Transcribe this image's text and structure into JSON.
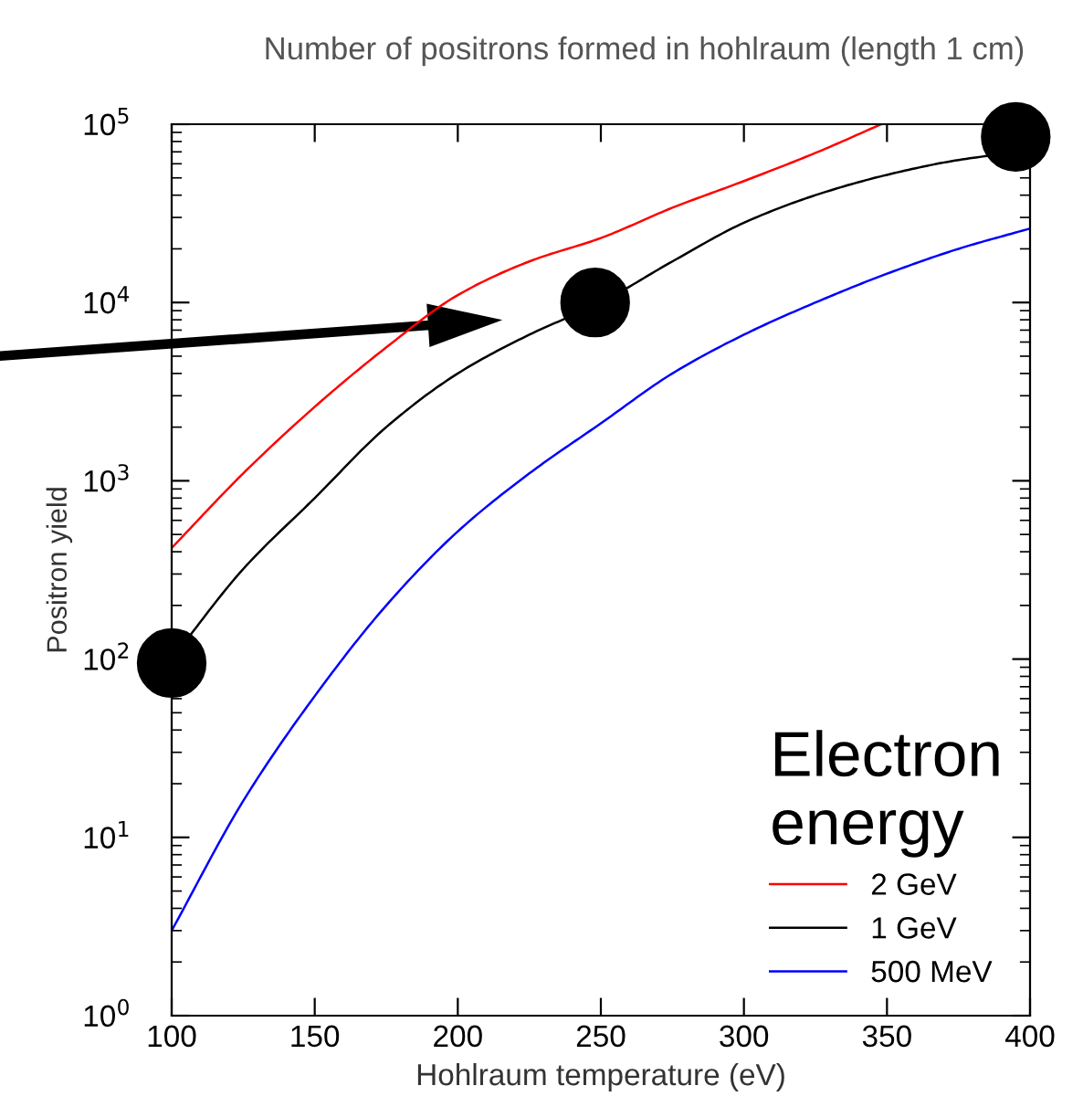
{
  "chart_data": {
    "type": "line",
    "title": "Number of positrons formed in hohlraum (length 1 cm)",
    "xlabel": "Hohlraum temperature (eV)",
    "ylabel": "Positron yield",
    "legend_title": "Electron\nenergy",
    "legend": "bottom right",
    "log": "y",
    "grid": false,
    "line_style": "solid",
    "marker": "none",
    "xlim": [
      100,
      400
    ],
    "xticks": [
      100,
      150,
      200,
      250,
      300,
      350,
      400
    ],
    "ylim": [
      1,
      100000
    ],
    "yticks": [
      {
        "value": 1,
        "label": "10$^{0}$"
      },
      {
        "value": 10,
        "label": "10$^{1}$"
      },
      {
        "value": 100,
        "label": "10$^{2}$"
      },
      {
        "value": 1000,
        "label": "10$^{3}$"
      },
      {
        "value": 10000,
        "label": "10$^{4}$"
      },
      {
        "value": 100000,
        "label": "10$^{5}$"
      }
    ],
    "series": [
      {
        "name": "2 GeV",
        "color": "#ff0000",
        "x": [
          100,
          125,
          150,
          175,
          200,
          225,
          250,
          275,
          300,
          325,
          348
        ],
        "values": [
          420,
          1100,
          2600,
          5600,
          11000,
          17000,
          23000,
          34000,
          48000,
          69000,
          100000
        ]
      },
      {
        "name": "1 GeV",
        "color": "#000000",
        "x": [
          100,
          125,
          150,
          175,
          200,
          225,
          250,
          275,
          300,
          325,
          350,
          375,
          400
        ],
        "values": [
          100,
          320,
          800,
          2000,
          4000,
          6600,
          10000,
          17000,
          28000,
          40000,
          52000,
          63000,
          71000
        ]
      },
      {
        "name": "500 MeV",
        "color": "#0000ff",
        "x": [
          100,
          125,
          150,
          175,
          200,
          225,
          250,
          275,
          300,
          325,
          350,
          375,
          400
        ],
        "values": [
          3,
          16,
          62,
          200,
          520,
          1100,
          2100,
          4000,
          6600,
          10000,
          14500,
          20000,
          26000
        ]
      },
      {
        "type": "scatter",
        "color": "#000000",
        "marker": "circle",
        "x": [
          100,
          248,
          395
        ],
        "values": [
          95,
          10000,
          85000
        ]
      }
    ]
  }
}
